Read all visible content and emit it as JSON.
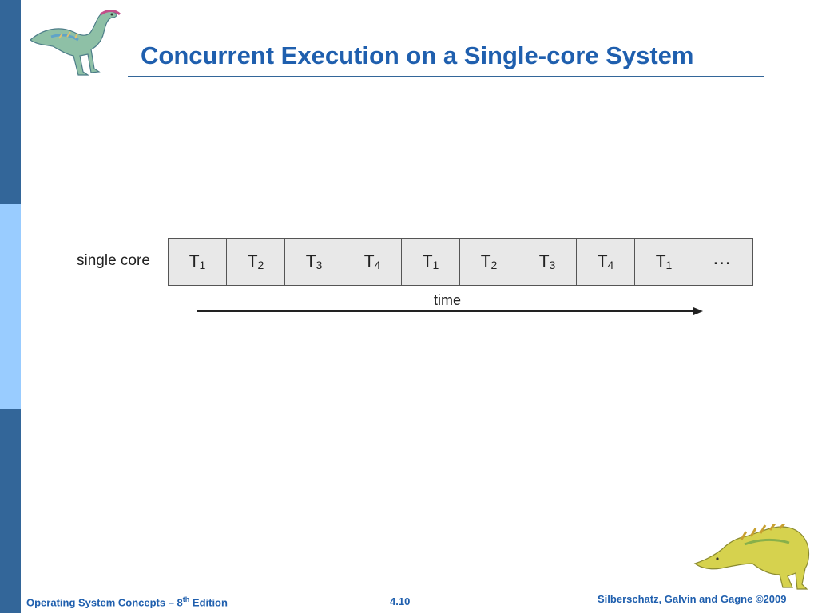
{
  "title": "Concurrent Execution on a Single-core System",
  "diagram": {
    "row_label": "single core",
    "tasks": [
      {
        "name": "T",
        "sub": "1"
      },
      {
        "name": "T",
        "sub": "2"
      },
      {
        "name": "T",
        "sub": "3"
      },
      {
        "name": "T",
        "sub": "4"
      },
      {
        "name": "T",
        "sub": "1"
      },
      {
        "name": "T",
        "sub": "2"
      },
      {
        "name": "T",
        "sub": "3"
      },
      {
        "name": "T",
        "sub": "4"
      },
      {
        "name": "T",
        "sub": "1"
      }
    ],
    "ellipsis": "…",
    "time_label": "time"
  },
  "footer": {
    "left_prefix": "Operating System Concepts – 8",
    "left_sup": "th",
    "left_suffix": " Edition",
    "page": "4.10",
    "copyright": "Silberschatz, Galvin and Gagne ©2009"
  },
  "colors": {
    "title": "#1f5fae",
    "sidebar_dark": "#336699",
    "sidebar_light": "#99ccff",
    "cell_fill": "#e8e8e8"
  },
  "icons": {
    "top": "dinosaur-icon",
    "bottom": "dinosaur-icon"
  }
}
